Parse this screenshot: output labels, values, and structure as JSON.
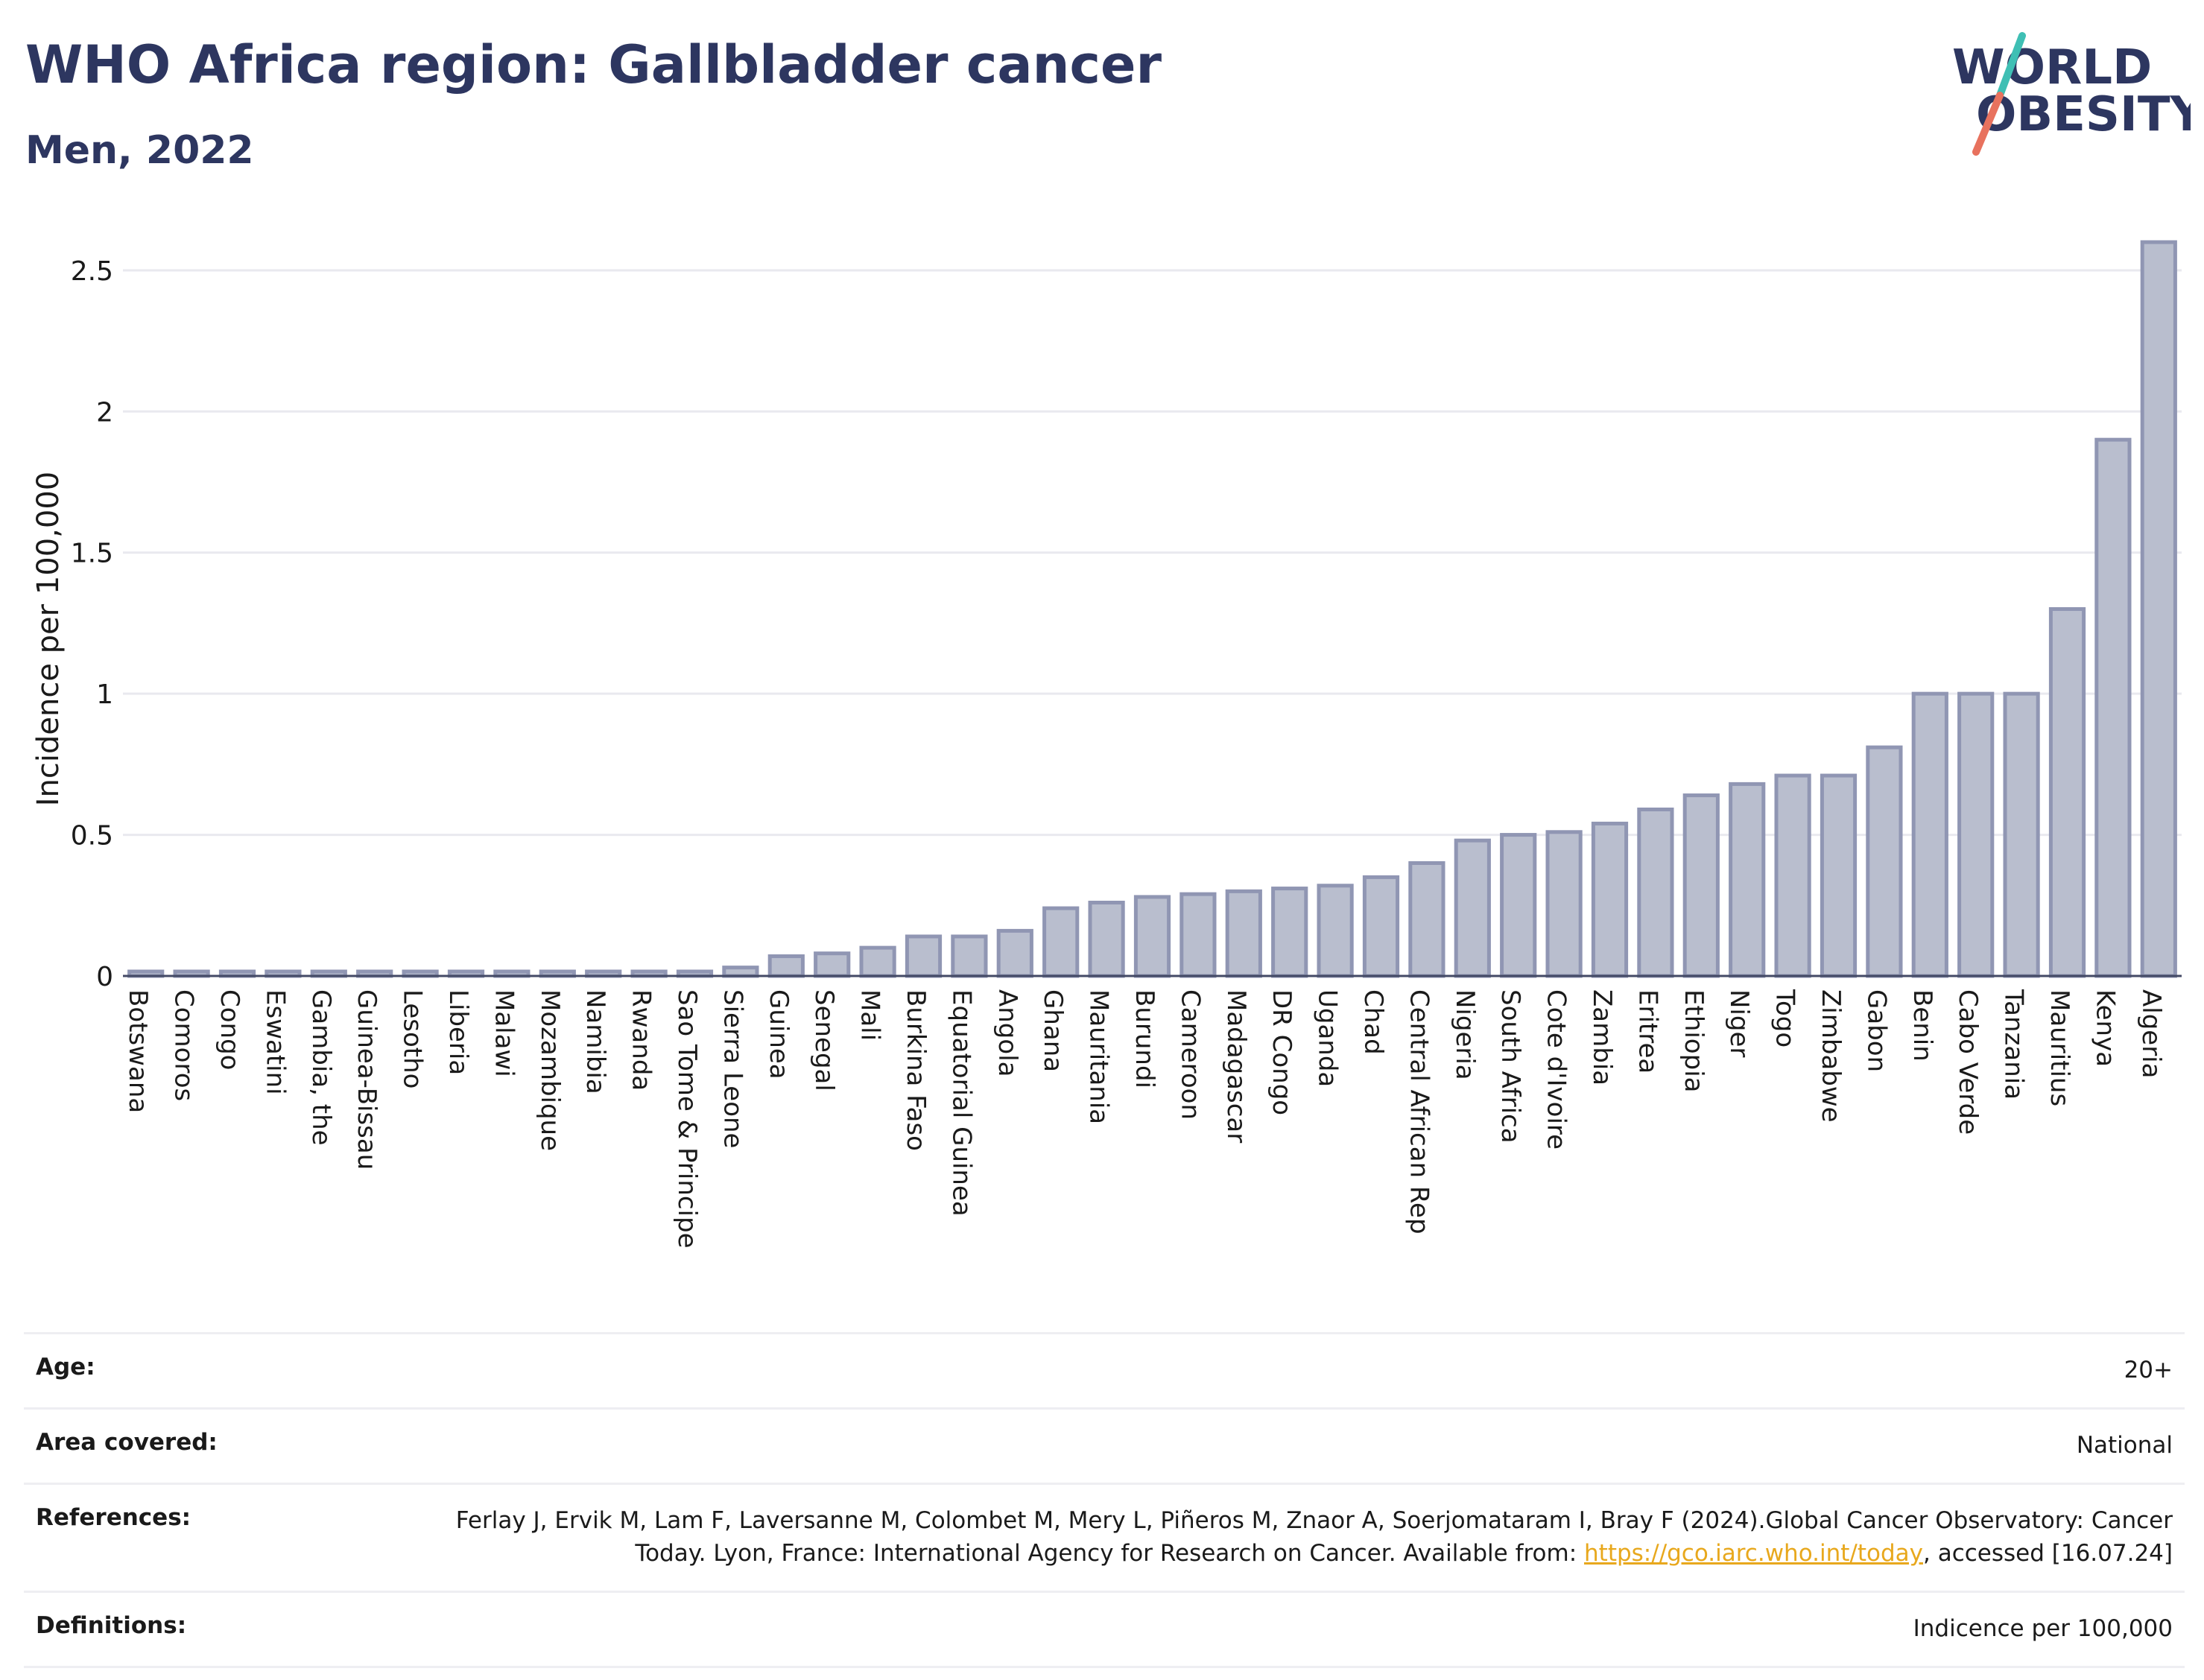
{
  "title": "WHO Africa region: Gallbladder cancer",
  "subtitle": "Men, 2022",
  "logo": {
    "line1": "WORLD",
    "line2": "OBESITY",
    "accent_teal": "#3fbfb4",
    "accent_coral": "#e8725e",
    "text_color": "#2d3660"
  },
  "colors": {
    "bar_fill": "#b9bece",
    "bar_stroke": "#9096b3",
    "grid": "#e9e9ef",
    "axis": "#444a66"
  },
  "chart_data": {
    "type": "bar",
    "title": "WHO Africa region: Gallbladder cancer",
    "subtitle": "Men, 2022",
    "xlabel": "",
    "ylabel": "Incidence per 100,000",
    "ylim": [
      0,
      2.6
    ],
    "yticks": [
      0,
      0.5,
      1,
      1.5,
      2,
      2.5
    ],
    "ytick_labels": [
      "0",
      "0.5",
      "1",
      "1.5",
      "2",
      "2.5"
    ],
    "grid": true,
    "categories": [
      "Botswana",
      "Comoros",
      "Congo",
      "Eswatini",
      "Gambia, the",
      "Guinea-Bissau",
      "Lesotho",
      "Liberia",
      "Malawi",
      "Mozambique",
      "Namibia",
      "Rwanda",
      "Sao Tome & Principe",
      "Sierra Leone",
      "Guinea",
      "Senegal",
      "Mali",
      "Burkina Faso",
      "Equatorial Guinea",
      "Angola",
      "Ghana",
      "Mauritania",
      "Burundi",
      "Cameroon",
      "Madagascar",
      "DR Congo",
      "Uganda",
      "Chad",
      "Central African Rep",
      "Nigeria",
      "South Africa",
      "Cote d'Ivoire",
      "Zambia",
      "Eritrea",
      "Ethiopia",
      "Niger",
      "Togo",
      "Zimbabwe",
      "Gabon",
      "Benin",
      "Cabo Verde",
      "Tanzania",
      "Mauritius",
      "Kenya",
      "Algeria"
    ],
    "values": [
      0,
      0,
      0,
      0,
      0,
      0,
      0,
      0,
      0,
      0,
      0,
      0,
      0,
      0.03,
      0.07,
      0.08,
      0.1,
      0.14,
      0.14,
      0.16,
      0.24,
      0.26,
      0.28,
      0.29,
      0.3,
      0.31,
      0.32,
      0.35,
      0.4,
      0.48,
      0.5,
      0.51,
      0.54,
      0.59,
      0.64,
      0.68,
      0.71,
      0.71,
      0.81,
      1.0,
      1.0,
      1.0,
      1.3,
      1.9,
      2.6
    ]
  },
  "info": [
    {
      "label": "Age:",
      "value": "20+"
    },
    {
      "label": "Area covered:",
      "value": "National"
    },
    {
      "label": "References:",
      "value": "Ferlay J, Ervik M, Lam F, Laversanne M, Colombet M, Mery L, Piñeros M, Znaor A, Soerjomataram I, Bray F (2024).Global Cancer Observatory: Cancer Today. Lyon, France: International Agency for Research on Cancer. Available from: ",
      "link": "https://gco.iarc.who.int/today",
      "value_after": ", accessed [16.07.24]"
    },
    {
      "label": "Definitions:",
      "value": "Indicence per 100,000"
    }
  ]
}
